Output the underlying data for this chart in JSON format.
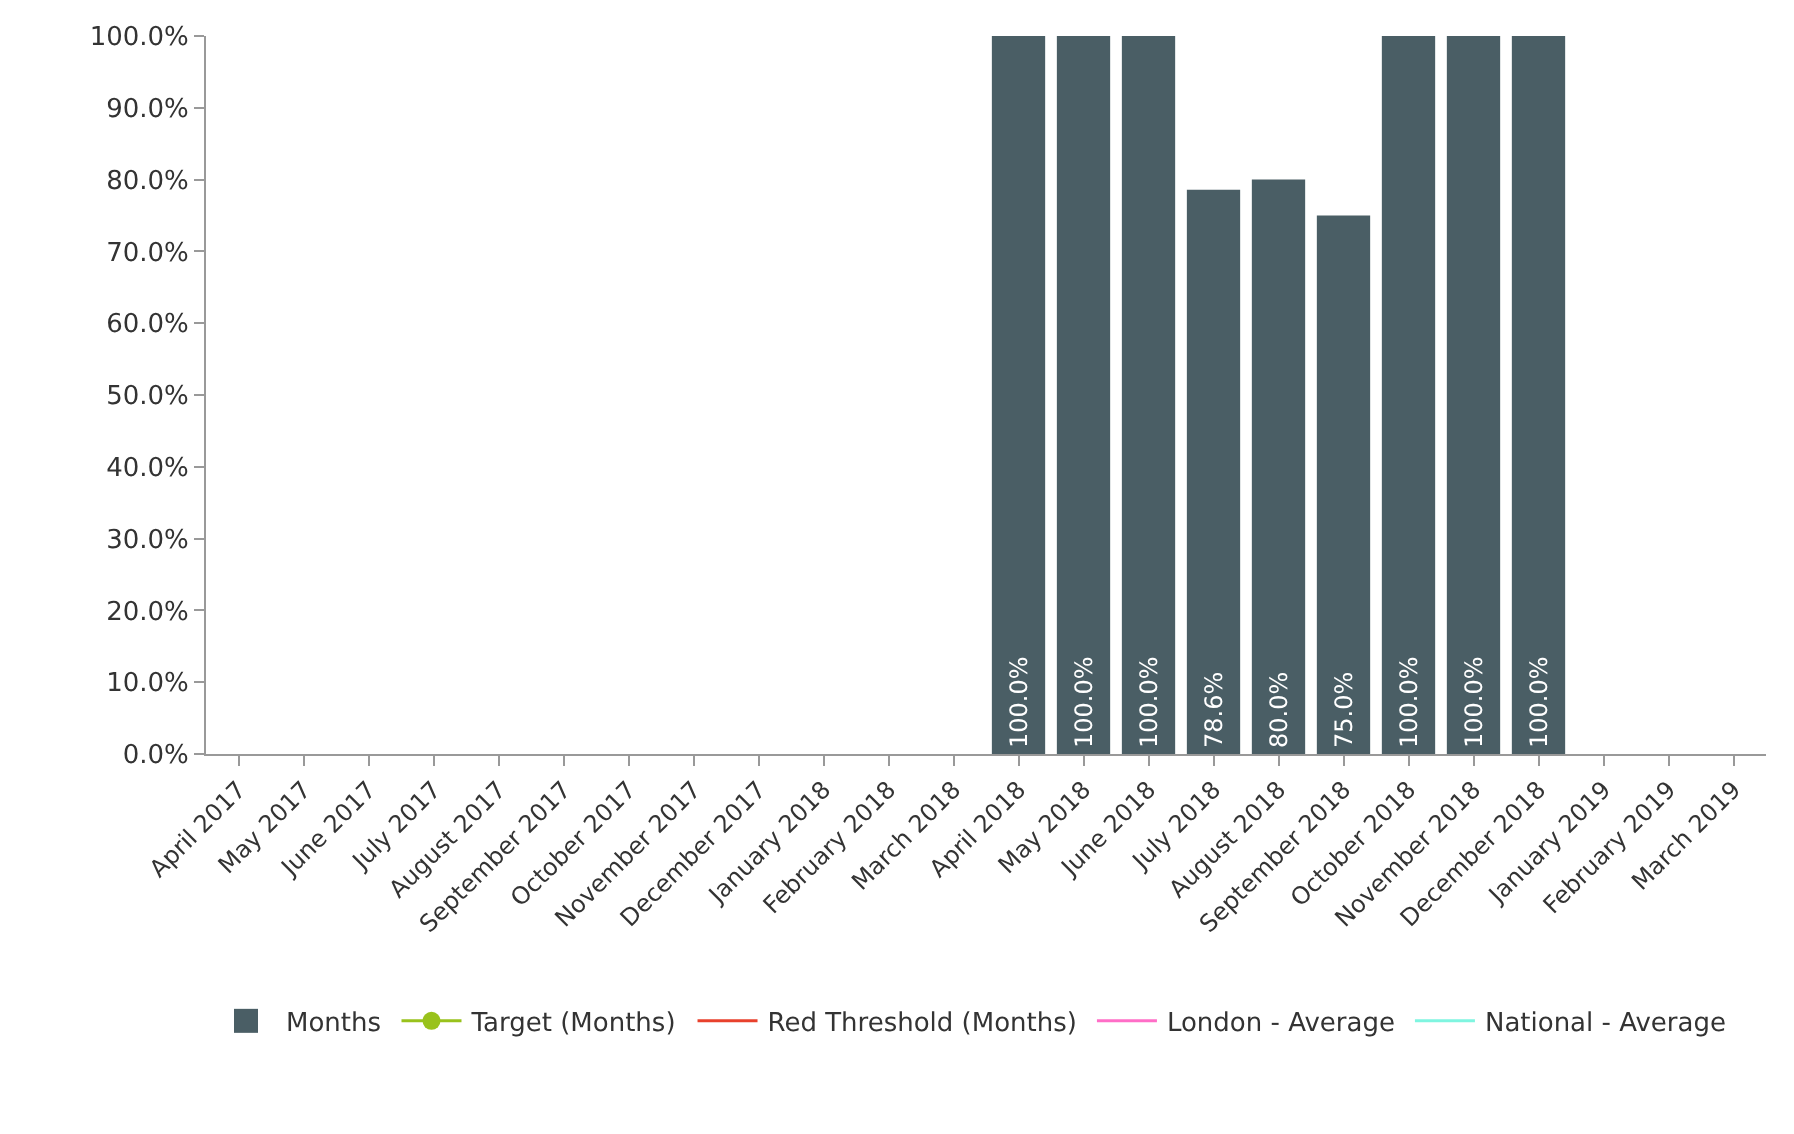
{
  "chart_data": {
    "type": "bar",
    "categories": [
      "April 2017",
      "May 2017",
      "June 2017",
      "July 2017",
      "August 2017",
      "September 2017",
      "October 2017",
      "November 2017",
      "December 2017",
      "January 2018",
      "February 2018",
      "March 2018",
      "April 2018",
      "May 2018",
      "June 2018",
      "July 2018",
      "August 2018",
      "September 2018",
      "October 2018",
      "November 2018",
      "December 2018",
      "January 2019",
      "February 2019",
      "March 2019"
    ],
    "series": [
      {
        "name": "Months",
        "color": "#4a5e65",
        "values": [
          null,
          null,
          null,
          null,
          null,
          null,
          null,
          null,
          null,
          null,
          null,
          null,
          100,
          100,
          100,
          78.6,
          80,
          75,
          100,
          100,
          100,
          null,
          null,
          null
        ],
        "value_labels": [
          null,
          null,
          null,
          null,
          null,
          null,
          null,
          null,
          null,
          null,
          null,
          null,
          "100.0%",
          "100.0%",
          "100.0%",
          "78.6%",
          "80.0%",
          "75.0%",
          "100.0%",
          "100.0%",
          "100.0%",
          null,
          null,
          null
        ]
      },
      {
        "name": "Target (Months)",
        "type": "line",
        "marker": "circle",
        "color": "#99c21c",
        "values": [
          null,
          null,
          null,
          null,
          null,
          null,
          null,
          null,
          null,
          null,
          null,
          null,
          null,
          null,
          null,
          null,
          null,
          null,
          null,
          null,
          null,
          null,
          null,
          null
        ]
      },
      {
        "name": "Red Threshold (Months)",
        "type": "line",
        "marker": "none",
        "color": "#e8412c",
        "values": [
          null,
          null,
          null,
          null,
          null,
          null,
          null,
          null,
          null,
          null,
          null,
          null,
          null,
          null,
          null,
          null,
          null,
          null,
          null,
          null,
          null,
          null,
          null,
          null
        ]
      },
      {
        "name": "London - Average",
        "type": "line",
        "marker": "none",
        "color": "#ff6ec7",
        "values": [
          null,
          null,
          null,
          null,
          null,
          null,
          null,
          null,
          null,
          null,
          null,
          null,
          null,
          null,
          null,
          null,
          null,
          null,
          null,
          null,
          null,
          null,
          null,
          null
        ]
      },
      {
        "name": "National - Average",
        "type": "line",
        "marker": "none",
        "color": "#7ff5e0",
        "values": [
          null,
          null,
          null,
          null,
          null,
          null,
          null,
          null,
          null,
          null,
          null,
          null,
          null,
          null,
          null,
          null,
          null,
          null,
          null,
          null,
          null,
          null,
          null,
          null
        ]
      }
    ],
    "ylim": [
      0,
      100
    ],
    "yticks": [
      {
        "value": 0,
        "label": "0.0%"
      },
      {
        "value": 10,
        "label": "10.0%"
      },
      {
        "value": 20,
        "label": "20.0%"
      },
      {
        "value": 30,
        "label": "30.0%"
      },
      {
        "value": 40,
        "label": "40.0%"
      },
      {
        "value": 50,
        "label": "50.0%"
      },
      {
        "value": 60,
        "label": "60.0%"
      },
      {
        "value": 70,
        "label": "70.0%"
      },
      {
        "value": 80,
        "label": "80.0%"
      },
      {
        "value": 90,
        "label": "90.0%"
      },
      {
        "value": 100,
        "label": "100.0%"
      }
    ],
    "legend": "bottom"
  }
}
